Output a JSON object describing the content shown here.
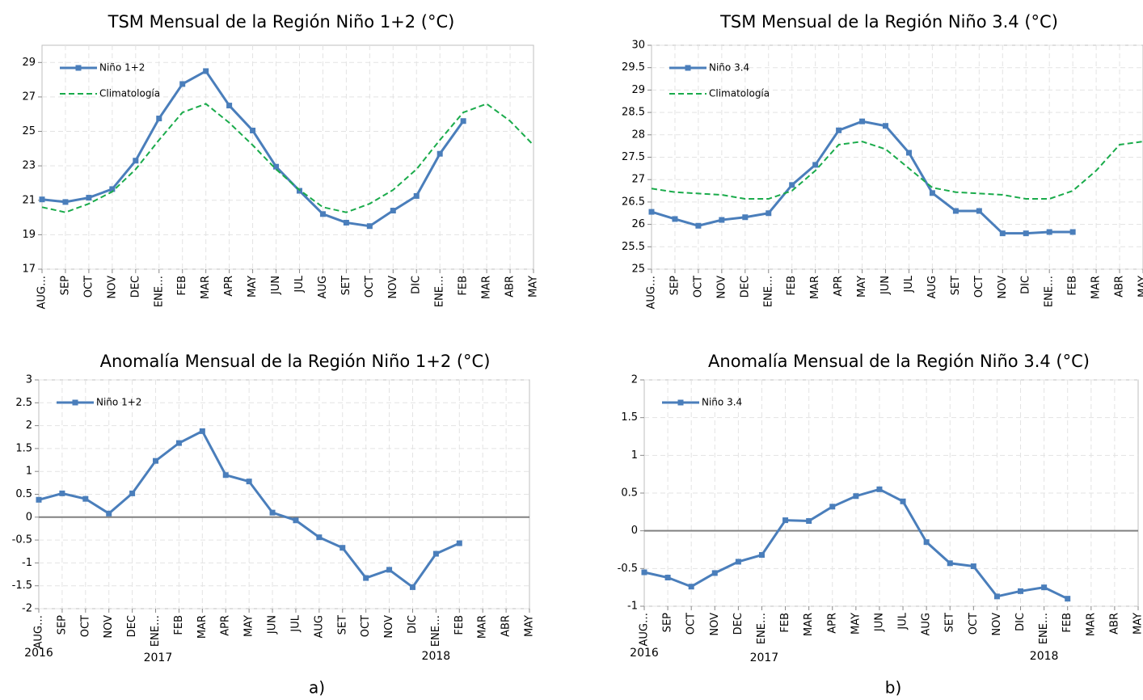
{
  "chart_data": [
    {
      "type": "line",
      "title": "TSM Mensual de la Región Niño 1+2 (°C)",
      "categories": [
        "AUG…",
        "SEP",
        "OCT",
        "NOV",
        "DEC",
        "ENE…",
        "FEB",
        "MAR",
        "APR",
        "MAY",
        "JUN",
        "JUL",
        "AUG",
        "SET",
        "OCT",
        "NOV",
        "DIC",
        "ENE…",
        "FEB",
        "MAR",
        "ABR",
        "MAY"
      ],
      "series": [
        {
          "name": "Niño 1+2",
          "color": "#4a7ebb",
          "marker": "square",
          "line_style": "solid",
          "values": [
            21.05,
            20.9,
            21.15,
            21.65,
            23.3,
            25.75,
            27.75,
            28.5,
            26.5,
            25.05,
            22.95,
            21.55,
            20.2,
            19.7,
            19.5,
            20.4,
            21.25,
            23.7,
            25.6,
            null,
            null,
            null
          ]
        },
        {
          "name": "Climatología",
          "color": "#1aab4b",
          "marker": "none",
          "line_style": "dashed",
          "values": [
            20.6,
            20.3,
            20.8,
            21.5,
            22.8,
            24.5,
            26.1,
            26.6,
            25.5,
            24.2,
            22.8,
            21.6,
            20.6,
            20.3,
            20.8,
            21.6,
            22.8,
            24.5,
            26.1,
            26.6,
            25.6,
            24.2
          ]
        }
      ],
      "ylim": [
        17,
        30
      ],
      "yticks": [
        17,
        19,
        21,
        23,
        25,
        27,
        29
      ],
      "grid": true,
      "legend": "upper-left"
    },
    {
      "type": "line",
      "title": "TSM Mensual de la Región Niño 3.4 (°C)",
      "categories": [
        "AUG…",
        "SEP",
        "OCT",
        "NOV",
        "DEC",
        "ENE…",
        "FEB",
        "MAR",
        "APR",
        "MAY",
        "JUN",
        "JUL",
        "AUG",
        "SET",
        "OCT",
        "NOV",
        "DIC",
        "ENE…",
        "FEB",
        "MAR",
        "ABR",
        "MAY"
      ],
      "series": [
        {
          "name": "Niño 3.4",
          "color": "#4a7ebb",
          "marker": "square",
          "line_style": "solid",
          "values": [
            26.28,
            26.12,
            25.97,
            26.1,
            26.16,
            26.25,
            26.88,
            27.33,
            28.1,
            28.3,
            28.2,
            27.6,
            26.7,
            26.3,
            26.3,
            25.8,
            25.8,
            25.83,
            25.83,
            null,
            null,
            null
          ]
        },
        {
          "name": "Climatología",
          "color": "#1aab4b",
          "marker": "none",
          "line_style": "dashed",
          "values": [
            26.8,
            26.72,
            26.69,
            26.66,
            26.57,
            26.57,
            26.75,
            27.2,
            27.78,
            27.85,
            27.68,
            27.25,
            26.82,
            26.72,
            26.69,
            26.66,
            26.57,
            26.57,
            26.75,
            27.2,
            27.78,
            27.85
          ]
        }
      ],
      "ylim": [
        25,
        30
      ],
      "yticks": [
        25,
        25.5,
        26,
        26.5,
        27,
        27.5,
        28,
        28.5,
        29,
        29.5,
        30
      ],
      "grid": true,
      "legend": "upper-left"
    },
    {
      "type": "line",
      "title": "Anomalía Mensual de la Región Niño 1+2 (°C)",
      "categories": [
        "AUG…",
        "SEP",
        "OCT",
        "NOV",
        "DEC",
        "ENE…",
        "FEB",
        "MAR",
        "APR",
        "MAY",
        "JUN",
        "JUL",
        "AUG",
        "SET",
        "OCT",
        "NOV",
        "DIC",
        "ENE…",
        "FEB",
        "MAR",
        "ABR",
        "MAY"
      ],
      "series": [
        {
          "name": "Niño 1+2",
          "color": "#4a7ebb",
          "marker": "square",
          "line_style": "solid",
          "values": [
            0.38,
            0.52,
            0.4,
            0.08,
            0.52,
            1.23,
            1.62,
            1.88,
            0.92,
            0.78,
            0.1,
            -0.07,
            -0.44,
            -0.67,
            -1.33,
            -1.15,
            -1.53,
            -0.8,
            -0.57,
            null,
            null,
            null
          ]
        }
      ],
      "ylim": [
        -2,
        3
      ],
      "yticks": [
        -2,
        -1.5,
        -1,
        -0.5,
        0,
        0.5,
        1,
        1.5,
        2,
        2.5,
        3
      ],
      "grid": true,
      "legend": "upper-left",
      "zero_line": true,
      "annotations": [
        "2016",
        "2017",
        "2018"
      ]
    },
    {
      "type": "line",
      "title": "Anomalía Mensual de la Región Niño 3.4 (°C)",
      "categories": [
        "AUG…",
        "SEP",
        "OCT",
        "NOV",
        "DEC",
        "ENE…",
        "FEB",
        "MAR",
        "APR",
        "MAY",
        "JUN",
        "JUL",
        "AUG",
        "SET",
        "OCT",
        "NOV",
        "DIC",
        "ENE…",
        "FEB",
        "MAR",
        "ABR",
        "MAY"
      ],
      "series": [
        {
          "name": "Niño 3.4",
          "color": "#4a7ebb",
          "marker": "square",
          "line_style": "solid",
          "values": [
            -0.55,
            -0.62,
            -0.74,
            -0.56,
            -0.41,
            -0.32,
            0.14,
            0.13,
            0.32,
            0.46,
            0.55,
            0.39,
            -0.15,
            -0.43,
            -0.47,
            -0.87,
            -0.8,
            -0.75,
            -0.9,
            null,
            null,
            null
          ]
        }
      ],
      "ylim": [
        -1,
        2
      ],
      "yticks": [
        -1,
        -0.5,
        0,
        0.5,
        1,
        1.5,
        2
      ],
      "grid": true,
      "legend": "upper-left",
      "zero_line": true,
      "annotations": [
        "2016",
        "2017",
        "2018"
      ]
    }
  ],
  "captions": [
    "a)",
    "b)"
  ]
}
